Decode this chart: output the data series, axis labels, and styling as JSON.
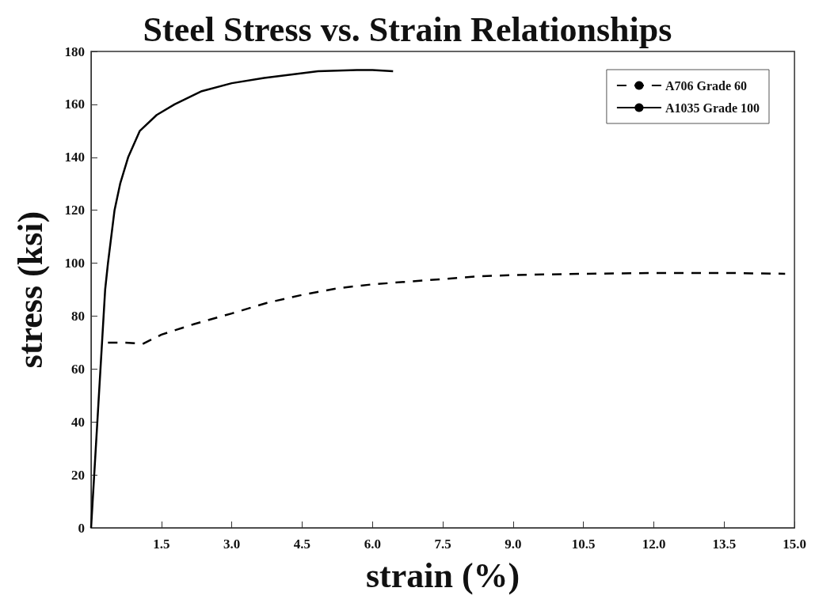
{
  "chart_data": {
    "type": "line",
    "title": "Steel Stress vs. Strain Relationships",
    "xlabel": "strain (%)",
    "ylabel": "stress (ksi)",
    "xlim": [
      0,
      15
    ],
    "xticks": [
      1.5,
      {
        "value": 3,
        "label": "3.0"
      },
      4.5,
      {
        "value": 6,
        "label": "6.0"
      },
      7.5,
      {
        "value": 9,
        "label": "9.0"
      },
      10.5,
      {
        "value": 12,
        "label": "12.0"
      },
      13.5,
      {
        "value": 15,
        "label": "15.0"
      }
    ],
    "ylim": [
      0,
      180
    ],
    "yticks": [
      0,
      20,
      40,
      60,
      80,
      100,
      120,
      140,
      160,
      180
    ],
    "grid": false,
    "legend": "top right",
    "marker": "none",
    "series": [
      {
        "name": "A706 Grade 60",
        "color": "#000000",
        "line_style": "dashed",
        "x": [
          0.36,
          0.7,
          1.1,
          1.5,
          2.2,
          3.0,
          3.75,
          4.5,
          5.25,
          6.0,
          6.75,
          7.5,
          8.25,
          9.0,
          10.5,
          12.0,
          13.5,
          14.8
        ],
        "values": [
          70,
          70,
          69.5,
          73,
          77,
          81,
          85,
          88,
          90.5,
          92,
          93,
          94,
          95,
          95.5,
          96,
          96.3,
          96.3,
          96
        ]
      },
      {
        "name": "A1035 Grade 100",
        "color": "#000000",
        "line_style": "solid",
        "x": [
          0,
          0.2,
          0.3,
          0.36,
          0.5,
          0.62,
          0.79,
          1.04,
          1.4,
          1.78,
          2.36,
          3.0,
          3.69,
          4.84,
          5.67,
          6.0,
          6.44
        ],
        "values": [
          0,
          60,
          90,
          100,
          120,
          130,
          140,
          150,
          156,
          160,
          165,
          168,
          170,
          172.5,
          173,
          173,
          172.5
        ]
      }
    ]
  }
}
